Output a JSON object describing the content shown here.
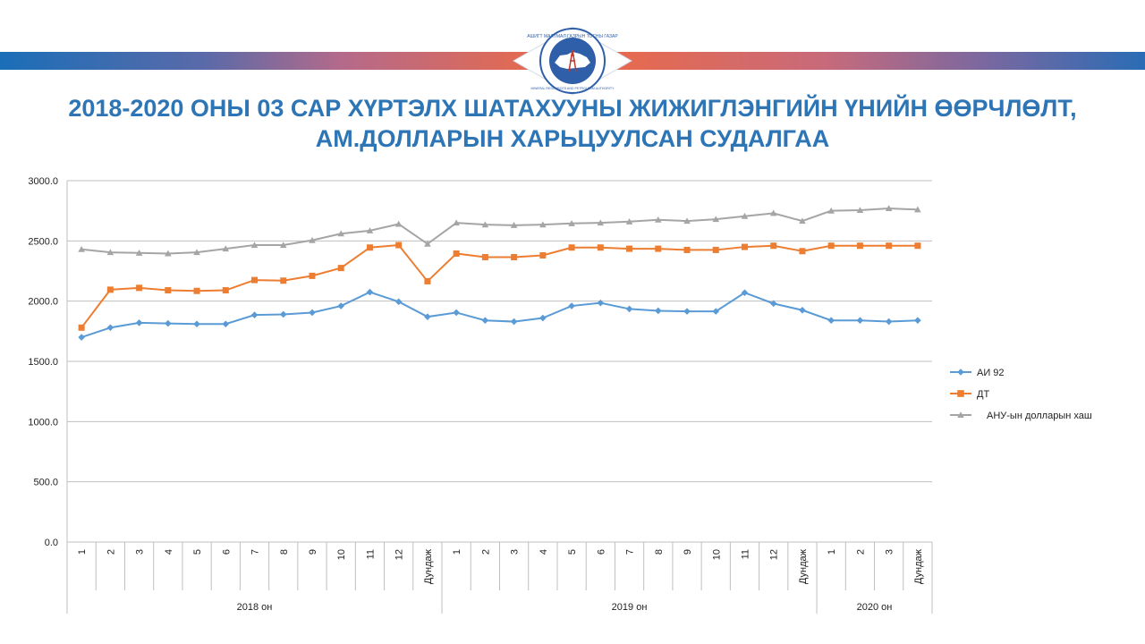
{
  "title": {
    "line1": "2018-2020 ОНЫ 03 САР ХҮРТЭЛХ ШАТАХУУНЫ ЖИЖИГЛЭНГИЙН ҮНИЙН ӨӨРЧЛӨЛТ,",
    "line2": "АМ.ДОЛЛАРЫН ХАРЬЦУУЛСАН СУДАЛГАА"
  },
  "logo": {
    "ring_text": "АШИГТ МАЛТМАЛ ГАЗРЫН ТОСНЫ ГАЗАР",
    "ring_text_en": "MINERAL RESOURCES AND PETROLEUM AUTHORITY",
    "icon": "mongolia-map-oil-derrick-emblem"
  },
  "colors": {
    "title": "#2e75b6",
    "ai92": "#5b9bd5",
    "dt": "#ed7d31",
    "usd": "#a5a5a5"
  },
  "chart_data": {
    "type": "line",
    "ylim": [
      0,
      3000
    ],
    "yticks": [
      "0.0",
      "500.0",
      "1000.0",
      "1500.0",
      "2000.0",
      "2500.0",
      "3000.0"
    ],
    "grid": true,
    "legend_position": "right",
    "categories": [
      "1",
      "2",
      "3",
      "4",
      "5",
      "6",
      "7",
      "8",
      "9",
      "10",
      "11",
      "12",
      "Дундаж",
      "1",
      "2",
      "3",
      "4",
      "5",
      "6",
      "7",
      "8",
      "9",
      "10",
      "11",
      "12",
      "Дундаж",
      "1",
      "2",
      "3",
      "Дундаж"
    ],
    "groups": [
      {
        "label": "2018 он",
        "count": 13
      },
      {
        "label": "2019 он",
        "count": 13
      },
      {
        "label": "2020 он",
        "count": 4
      }
    ],
    "series": [
      {
        "name": "АИ 92",
        "marker": "diamond",
        "values": [
          1700,
          1780,
          1820,
          1815,
          1810,
          1810,
          1885,
          1890,
          1905,
          1960,
          2075,
          1995,
          1870,
          1905,
          1840,
          1830,
          1860,
          1960,
          1985,
          1935,
          1920,
          1915,
          1915,
          2070,
          1980,
          1925,
          1840,
          1840,
          1830,
          1840
        ]
      },
      {
        "name": "ДТ",
        "marker": "square",
        "values": [
          1780,
          2095,
          2110,
          2090,
          2085,
          2090,
          2175,
          2170,
          2210,
          2275,
          2445,
          2465,
          2165,
          2395,
          2365,
          2365,
          2380,
          2445,
          2445,
          2435,
          2435,
          2425,
          2425,
          2450,
          2460,
          2415,
          2460,
          2460,
          2460,
          2460
        ]
      },
      {
        "name": "АНУ-ын долларын хаш",
        "marker": "triangle",
        "values": [
          2430,
          2405,
          2400,
          2395,
          2405,
          2435,
          2465,
          2465,
          2505,
          2560,
          2585,
          2640,
          2475,
          2650,
          2635,
          2630,
          2635,
          2645,
          2650,
          2660,
          2675,
          2665,
          2680,
          2705,
          2730,
          2665,
          2750,
          2755,
          2770,
          2760
        ]
      }
    ]
  }
}
